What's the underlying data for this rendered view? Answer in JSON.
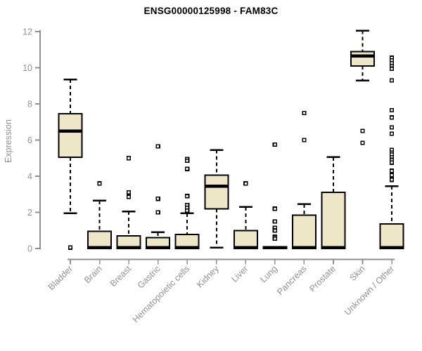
{
  "chart_data": {
    "type": "boxplot",
    "title": "ENSG00000125998 - FAM83C",
    "xlabel": "",
    "ylabel": "Expression",
    "ylim": [
      0,
      12
    ],
    "yticks": [
      0,
      2,
      4,
      6,
      8,
      10,
      12
    ],
    "grid": false,
    "legend": "none",
    "colors": {
      "box_fill": "#EDE7C7",
      "box_stroke": "#000000",
      "median": "#000000",
      "whisker": "#000000",
      "outlier_stroke": "#000000",
      "outlier_fill": "#ffffff",
      "axis": "#8f8f8f",
      "tick_label": "#8f8f8f",
      "title": "#000000",
      "background": "#ffffff"
    },
    "categories": [
      "Bladder",
      "Brain",
      "Breast",
      "Gastric",
      "Hematopoietic cells",
      "Kidney",
      "Liver",
      "Lung",
      "Pancreas",
      "Prostate",
      "Skin",
      "Unknown / Other"
    ],
    "series": [
      {
        "name": "Bladder",
        "low": 1.95,
        "q1": 5.05,
        "median": 6.5,
        "q3": 7.45,
        "high": 9.35,
        "outliers": [
          0.05
        ]
      },
      {
        "name": "Brain",
        "low": 0,
        "q1": 0,
        "median": 0.05,
        "q3": 0.95,
        "high": 2.65,
        "outliers": [
          3.6
        ]
      },
      {
        "name": "Breast",
        "low": 0,
        "q1": 0,
        "median": 0.05,
        "q3": 0.7,
        "high": 2.05,
        "outliers": [
          5.0,
          3.1,
          2.85
        ]
      },
      {
        "name": "Gastric",
        "low": 0,
        "q1": 0,
        "median": 0.05,
        "q3": 0.6,
        "high": 0.9,
        "outliers": [
          5.65,
          2.75,
          2.0
        ]
      },
      {
        "name": "Hematopoietic cells",
        "low": 0,
        "q1": 0,
        "median": 0.05,
        "q3": 0.78,
        "high": 1.95,
        "outliers": [
          4.95,
          4.85,
          4.4,
          2.9,
          2.4,
          2.25,
          2.1
        ]
      },
      {
        "name": "Kidney",
        "low": 0.05,
        "q1": 2.2,
        "median": 3.45,
        "q3": 4.05,
        "high": 5.45,
        "outliers": []
      },
      {
        "name": "Liver",
        "low": 0,
        "q1": 0,
        "median": 0.05,
        "q3": 1.0,
        "high": 2.3,
        "outliers": [
          3.6
        ]
      },
      {
        "name": "Lung",
        "low": 0,
        "q1": 0,
        "median": 0.05,
        "q3": 0.1,
        "high": 0.1,
        "outliers": [
          5.75,
          2.2,
          1.5,
          1.15,
          1.0,
          0.65,
          0.55
        ]
      },
      {
        "name": "Pancreas",
        "low": 0,
        "q1": 0,
        "median": 0.05,
        "q3": 1.85,
        "high": 2.45,
        "outliers": [
          7.5,
          6.0
        ]
      },
      {
        "name": "Prostate",
        "low": 0,
        "q1": 0,
        "median": 0.05,
        "q3": 3.1,
        "high": 5.05,
        "outliers": []
      },
      {
        "name": "Skin",
        "low": 9.3,
        "q1": 10.1,
        "median": 10.65,
        "q3": 10.9,
        "high": 12.05,
        "outliers": [
          6.5,
          5.85
        ]
      },
      {
        "name": "Unknown / Other",
        "low": 0,
        "q1": 0,
        "median": 0.05,
        "q3": 1.35,
        "high": 3.45,
        "outliers": [
          10.55,
          10.4,
          10.25,
          10.1,
          9.95,
          9.3,
          7.65,
          7.25,
          6.7,
          6.35,
          5.45,
          5.3,
          5.2,
          5.05,
          4.9,
          4.75,
          4.3,
          4.05,
          3.8
        ]
      }
    ]
  }
}
